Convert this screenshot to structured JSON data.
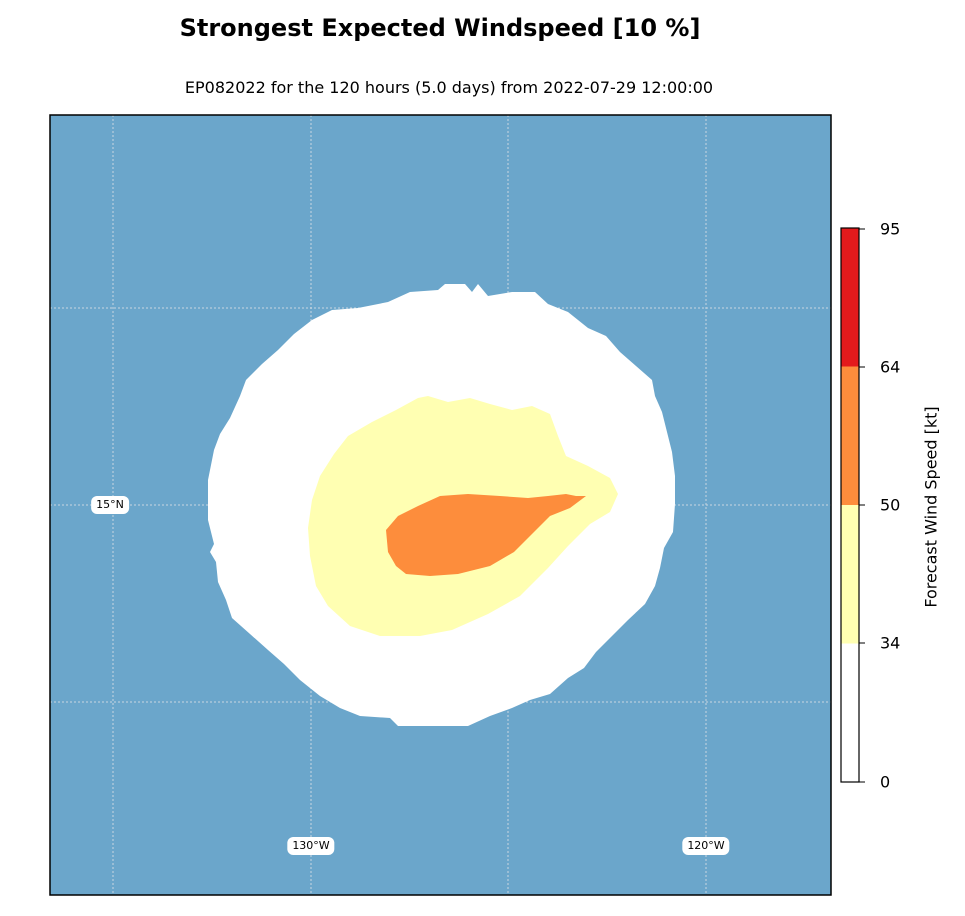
{
  "title": "Strongest Expected Windspeed [10 %]",
  "subtitle": "EP082022 for the 120 hours (5.0 days) from 2022-07-29 12:00:00",
  "map": {
    "ocean_color": "#6ba6cb",
    "gridline_color": "#c8d6e0",
    "lat_label": "15°N",
    "lon_labels": [
      "130°W",
      "120°W"
    ]
  },
  "colorbar": {
    "label": "Forecast Wind Speed [kt]",
    "ticks": [
      "95",
      "64",
      "50",
      "34",
      "0"
    ],
    "bands": [
      {
        "from": 0,
        "to": 34,
        "color": "#ffffff"
      },
      {
        "from": 34,
        "to": 50,
        "color": "#ffffb2"
      },
      {
        "from": 50,
        "to": 64,
        "color": "#fd8d3c"
      },
      {
        "from": 64,
        "to": 95,
        "color": "#e31a1c"
      }
    ]
  }
}
